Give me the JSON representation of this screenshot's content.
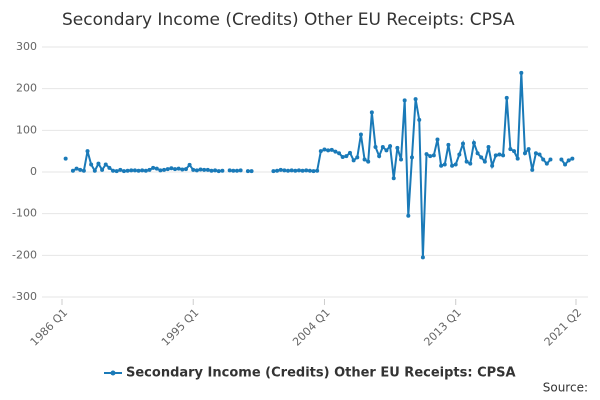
{
  "chart_data": {
    "type": "line",
    "title": "Secondary Income (Credits) Other EU Receipts: CPSA",
    "source": "Source:",
    "x": [
      1986,
      1986.25,
      1986.5,
      1986.75,
      1987,
      1987.25,
      1987.5,
      1987.75,
      1988,
      1988.25,
      1988.5,
      1988.75,
      1989,
      1989.25,
      1989.5,
      1989.75,
      1990,
      1990.25,
      1990.5,
      1990.75,
      1991,
      1991.25,
      1991.5,
      1991.75,
      1992,
      1992.25,
      1992.5,
      1992.75,
      1993,
      1993.25,
      1993.5,
      1993.75,
      1994,
      1994.25,
      1994.5,
      1994.75,
      1995,
      1995.25,
      1995.5,
      1995.75,
      1996,
      1996.25,
      1996.5,
      1996.75,
      1997,
      1997.25,
      1997.5,
      1997.75,
      1998,
      1998.25,
      1998.5,
      1998.75,
      1999,
      1999.25,
      1999.5,
      1999.75,
      2000,
      2000.25,
      2000.5,
      2000.75,
      2001,
      2001.25,
      2001.5,
      2001.75,
      2002,
      2002.25,
      2002.5,
      2002.75,
      2003,
      2003.25,
      2003.5,
      2003.75,
      2004,
      2004.25,
      2004.5,
      2004.75,
      2005,
      2005.25,
      2005.5,
      2005.75,
      2006,
      2006.25,
      2006.5,
      2006.75,
      2007,
      2007.25,
      2007.5,
      2007.75,
      2008,
      2008.25,
      2008.5,
      2008.75,
      2009,
      2009.25,
      2009.5,
      2009.75,
      2010,
      2010.25,
      2010.5,
      2010.75,
      2011,
      2011.25,
      2011.5,
      2011.75,
      2012,
      2012.25,
      2012.5,
      2012.75,
      2013,
      2013.25,
      2013.5,
      2013.75,
      2014,
      2014.25,
      2014.5,
      2014.75,
      2015,
      2015.25,
      2015.5,
      2015.75,
      2016,
      2016.25,
      2016.5,
      2016.75,
      2017,
      2017.25,
      2017.5,
      2017.75,
      2018,
      2018.25,
      2018.5,
      2018.75,
      2019,
      2019.25,
      2019.5,
      2019.75,
      2020,
      2020.25,
      2020.5,
      2020.75,
      2021,
      2021.25
    ],
    "series": [
      {
        "name": "Secondary Income (Credits) Other EU Receipts: CPSA",
        "color": "#1a7ab8",
        "values": [
          null,
          32,
          null,
          3,
          8,
          5,
          3,
          50,
          18,
          3,
          20,
          5,
          18,
          10,
          3,
          2,
          5,
          2,
          3,
          4,
          4,
          3,
          4,
          3,
          5,
          10,
          8,
          4,
          5,
          7,
          9,
          7,
          8,
          6,
          7,
          17,
          5,
          4,
          6,
          5,
          5,
          3,
          4,
          2,
          3,
          null,
          4,
          3,
          3,
          4,
          null,
          2,
          2,
          null,
          null,
          null,
          null,
          null,
          2,
          3,
          5,
          4,
          3,
          4,
          3,
          4,
          3,
          4,
          3,
          2,
          3,
          50,
          54,
          52,
          53,
          49,
          45,
          36,
          38,
          46,
          28,
          35,
          90,
          30,
          25,
          143,
          60,
          38,
          60,
          52,
          62,
          -15,
          58,
          30,
          172,
          -105,
          35,
          175,
          125,
          -205,
          43,
          38,
          40,
          78,
          15,
          18,
          65,
          15,
          18,
          42,
          68,
          25,
          20,
          70,
          45,
          35,
          25,
          60,
          15,
          40,
          42,
          40,
          178,
          55,
          50,
          32,
          238,
          45,
          55,
          5,
          45,
          42,
          30,
          20,
          30,
          null,
          null,
          30,
          18,
          28,
          32,
          null
        ]
      }
    ],
    "xlim": [
      1986,
      2021.25
    ],
    "xticks": [
      {
        "value": 1986,
        "label": "1986 Q1"
      },
      {
        "value": 1995,
        "label": "1995 Q1"
      },
      {
        "value": 2004,
        "label": "2004 Q1"
      },
      {
        "value": 2013,
        "label": "2013 Q1"
      },
      {
        "value": 2021.25,
        "label": "2021 Q2"
      }
    ],
    "ylim": [
      -300,
      300
    ],
    "yticks": [
      300,
      200,
      100,
      0,
      -100,
      -200,
      -300
    ],
    "grid": true
  }
}
